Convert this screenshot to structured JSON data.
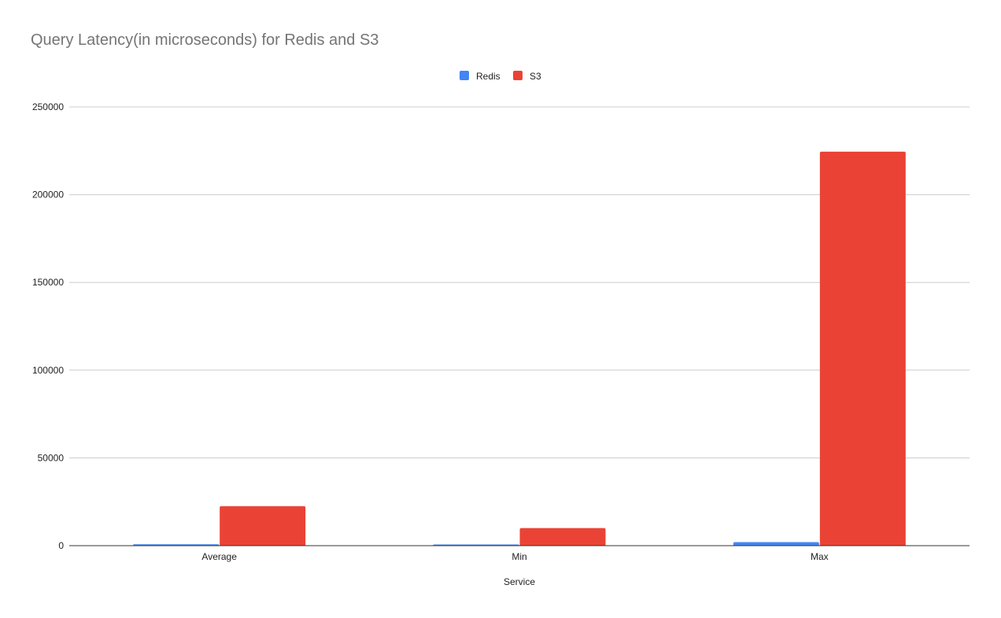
{
  "chart_data": {
    "type": "bar",
    "title": "Query Latency(in microseconds) for Redis and S3",
    "xlabel": "Service",
    "ylabel": "",
    "categories": [
      "Average",
      "Min",
      "Max"
    ],
    "series": [
      {
        "name": "Redis",
        "color": "#4285f4",
        "values": [
          800,
          700,
          2000
        ]
      },
      {
        "name": "S3",
        "color": "#ea4335",
        "values": [
          22500,
          10000,
          224500
        ]
      }
    ],
    "ylim": [
      0,
      250000
    ],
    "yticks": [
      "0",
      "50000",
      "100000",
      "150000",
      "200000",
      "250000"
    ],
    "grid": true,
    "legend_position": "top-center"
  }
}
